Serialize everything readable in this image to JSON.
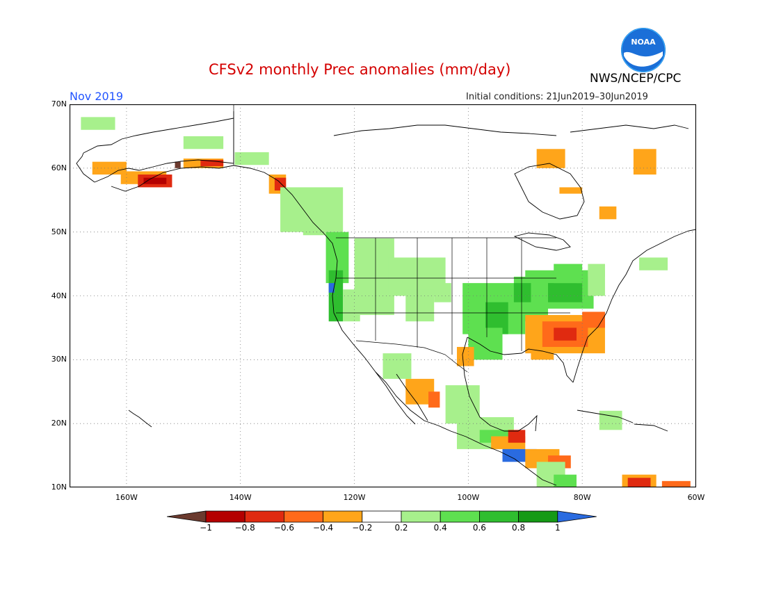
{
  "title": "CFSv2 monthly Prec anomalies (mm/day)",
  "month": "Nov 2019",
  "initial_conditions": "Initial conditions: 21Jun2019–30Jun2019",
  "agency": "NWS/NCEP/CPC",
  "logo_text": "NOAA",
  "lat_labels": [
    "70N",
    "60N",
    "50N",
    "40N",
    "30N",
    "20N",
    "10N"
  ],
  "lon_labels": [
    "160W",
    "140W",
    "120W",
    "100W",
    "80W",
    "60W"
  ],
  "colorbar": {
    "labels": [
      "−1",
      "−0.8",
      "−0.6",
      "−0.4",
      "−0.2",
      "0.2",
      "0.4",
      "0.6",
      "0.8",
      "1"
    ],
    "colors": [
      "#6b3a2e",
      "#b40000",
      "#e02a10",
      "#ff6a1a",
      "#ffa51a",
      "#ffffff",
      "#a7f08c",
      "#5ee050",
      "#2fbe2f",
      "#159a15",
      "#2a6be0"
    ]
  },
  "colors": {
    "orange": "#ffa51a",
    "redorange": "#ff6a1a",
    "red": "#e02a10",
    "darkred": "#b40000",
    "brown": "#6b3a2e",
    "lightgreen": "#a7f08c",
    "green": "#5ee050",
    "midgreen": "#2fbe2f",
    "darkgreen": "#159a15",
    "blue": "#2a6be0"
  }
}
